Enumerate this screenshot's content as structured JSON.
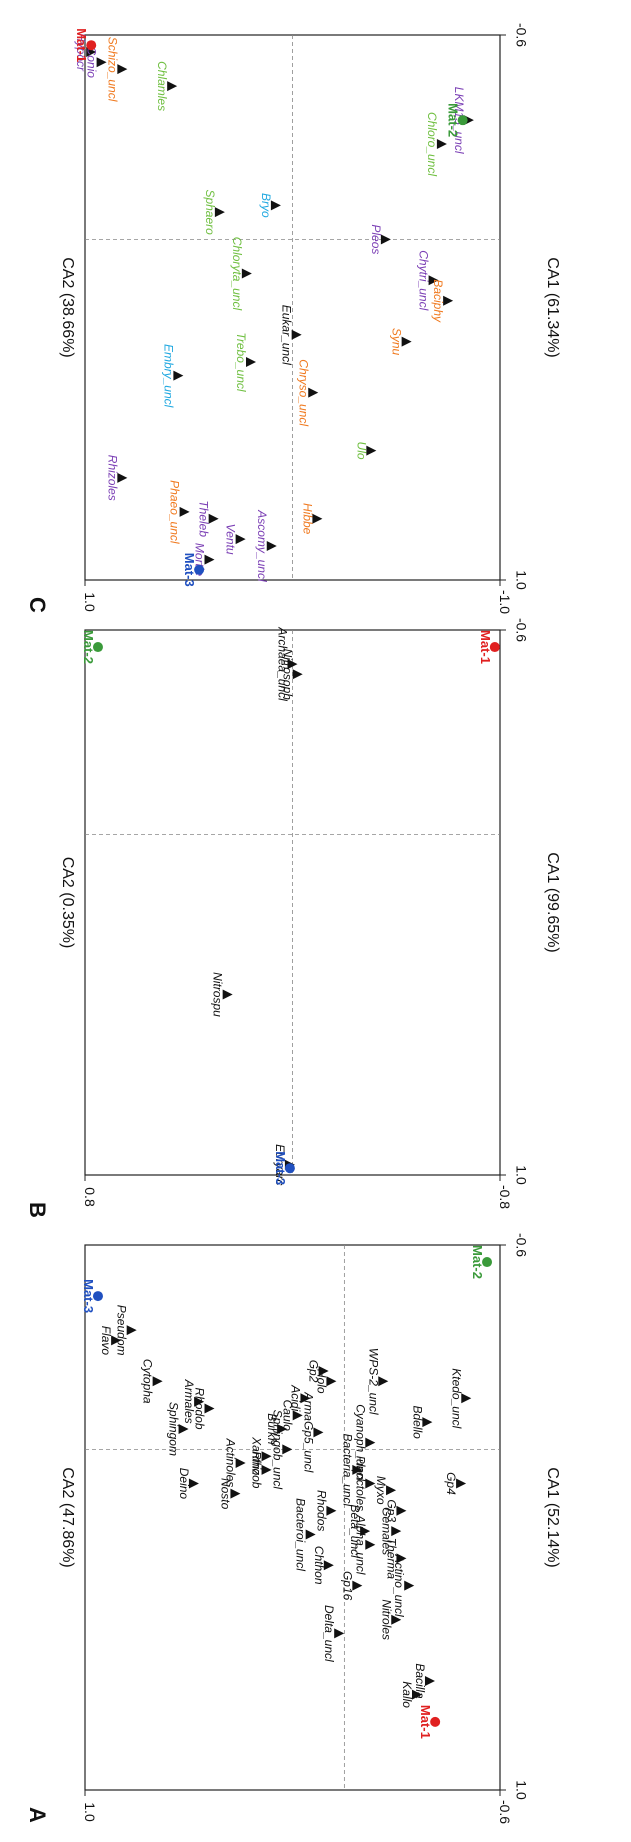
{
  "colors": {
    "red": "#e02020",
    "green": "#3a9a3a",
    "blue": "#2050c0",
    "purple": "#7b3fb5",
    "orange": "#f07a20",
    "lightgreen": "#6fbf40",
    "cyan": "#20a8e0",
    "black": "#111111"
  },
  "chart_data": [
    {
      "panel": "A",
      "type": "scatter",
      "xlabel": "CA1 (52.14%)",
      "ylabel": "CA2 (47.86%)",
      "xlim": [
        -0.6,
        1.0
      ],
      "ylim": [
        -0.6,
        1.0
      ],
      "xticks": [
        "-0.6",
        "1.0"
      ],
      "yticks": [
        "1.0",
        "-0.6"
      ],
      "series": [
        {
          "name": "taxa",
          "points": [
            {
              "label": "Flavo",
              "x": -0.32,
              "y": 0.88
            },
            {
              "label": "Pseudom",
              "x": -0.35,
              "y": 0.82
            },
            {
              "label": "Cytopha",
              "x": -0.2,
              "y": 0.72
            },
            {
              "label": "Sphingom",
              "x": -0.06,
              "y": 0.62
            },
            {
              "label": "Armales",
              "x": -0.14,
              "y": 0.56
            },
            {
              "label": "Rhodob",
              "x": -0.12,
              "y": 0.52
            },
            {
              "label": "Deino",
              "x": 0.1,
              "y": 0.58
            },
            {
              "label": "Nosto",
              "x": 0.13,
              "y": 0.42
            },
            {
              "label": "Actinoles",
              "x": 0.04,
              "y": 0.4
            },
            {
              "label": "Xantho",
              "x": 0.02,
              "y": 0.3
            },
            {
              "label": "Rhizob",
              "x": 0.06,
              "y": 0.3
            },
            {
              "label": "Burkh",
              "x": -0.06,
              "y": 0.24
            },
            {
              "label": "Caulo",
              "x": -0.1,
              "y": 0.18
            },
            {
              "label": "Acidi",
              "x": -0.15,
              "y": 0.15
            },
            {
              "label": "Sphingob_uncl",
              "x": 0.0,
              "y": 0.22
            },
            {
              "label": "Gp2",
              "x": -0.23,
              "y": 0.08
            },
            {
              "label": "ArmaGp5_uncl",
              "x": -0.05,
              "y": 0.1
            },
            {
              "label": "Holo",
              "x": -0.2,
              "y": 0.05
            },
            {
              "label": "Rhodos",
              "x": 0.18,
              "y": 0.05
            },
            {
              "label": "Bacteroi_uncl",
              "x": 0.25,
              "y": 0.13
            },
            {
              "label": "Chthon",
              "x": 0.34,
              "y": 0.06
            },
            {
              "label": "Bacteria_uncl",
              "x": 0.06,
              "y": -0.05
            },
            {
              "label": "Cyanoph_uncl",
              "x": -0.02,
              "y": -0.1
            },
            {
              "label": "Planctoles",
              "x": 0.1,
              "y": -0.1
            },
            {
              "label": "Beta_uncl",
              "x": 0.24,
              "y": -0.08
            },
            {
              "label": "Alpha_uncl",
              "x": 0.28,
              "y": -0.1
            },
            {
              "label": "Gp16",
              "x": 0.4,
              "y": -0.05
            },
            {
              "label": "Delta_uncl",
              "x": 0.54,
              "y": 0.02
            },
            {
              "label": "WPS-2_uncl",
              "x": -0.2,
              "y": -0.15
            },
            {
              "label": "Myxo",
              "x": 0.12,
              "y": -0.18
            },
            {
              "label": "Gp3",
              "x": 0.18,
              "y": -0.22
            },
            {
              "label": "Gemales",
              "x": 0.24,
              "y": -0.2
            },
            {
              "label": "Therma",
              "x": 0.32,
              "y": -0.22
            },
            {
              "label": "Actino_uncl",
              "x": 0.4,
              "y": -0.25
            },
            {
              "label": "Nitroles",
              "x": 0.5,
              "y": -0.2
            },
            {
              "label": "Bdello",
              "x": -0.08,
              "y": -0.32
            },
            {
              "label": "Gp4",
              "x": 0.1,
              "y": -0.45
            },
            {
              "label": "Ktedo_uncl",
              "x": -0.15,
              "y": -0.47
            },
            {
              "label": "Kallo",
              "x": 0.72,
              "y": -0.28
            },
            {
              "label": "Bacilla",
              "x": 0.68,
              "y": -0.33
            }
          ]
        },
        {
          "name": "samples",
          "points": [
            {
              "label": "Mat-3",
              "x": -0.45,
              "y": 0.95,
              "color": "blue"
            },
            {
              "label": "Mat-2",
              "x": -0.55,
              "y": -0.55,
              "color": "green"
            },
            {
              "label": "Mat-1",
              "x": 0.8,
              "y": -0.35,
              "color": "red"
            }
          ]
        }
      ]
    },
    {
      "panel": "B",
      "type": "scatter",
      "xlabel": "CA1 (99.65%)",
      "ylabel": "CA2 (0.35%)",
      "xlim": [
        -0.6,
        1.0
      ],
      "ylim": [
        -0.8,
        0.8
      ],
      "xticks": [
        "-0.6",
        "1.0"
      ],
      "yticks": [
        "0.8",
        "-0.8"
      ],
      "series": [
        {
          "name": "taxa",
          "points": [
            {
              "label": "Archaea_uncl",
              "x": -0.5,
              "y": 0.0
            },
            {
              "label": "Nitrosoph",
              "x": -0.47,
              "y": -0.02
            },
            {
              "label": "Nitrospu",
              "x": 0.47,
              "y": 0.25
            },
            {
              "label": "Euryarc",
              "x": 0.97,
              "y": 0.01
            }
          ]
        },
        {
          "name": "samples",
          "points": [
            {
              "label": "Mat-2",
              "x": -0.55,
              "y": 0.75,
              "color": "green"
            },
            {
              "label": "Mat-3",
              "x": 0.98,
              "y": 0.01,
              "color": "blue"
            },
            {
              "label": "Mat-1",
              "x": -0.55,
              "y": -0.78,
              "color": "red"
            }
          ]
        }
      ]
    },
    {
      "panel": "C",
      "type": "scatter",
      "xlabel": "CA1 (61.34%)",
      "ylabel": "CA2 (38.66%)",
      "xlim": [
        -0.6,
        1.0
      ],
      "ylim": [
        -1.0,
        1.0
      ],
      "xticks": [
        "-0.6",
        "1.0"
      ],
      "yticks": [
        "1.0",
        "-1.0"
      ],
      "series": [
        {
          "name": "taxa",
          "points": [
            {
              "label": "Hypocr",
              "x": -0.55,
              "y": 0.97,
              "color": "purple"
            },
            {
              "label": "Conio",
              "x": -0.52,
              "y": 0.92,
              "color": "purple"
            },
            {
              "label": "Schizo_uncl",
              "x": -0.5,
              "y": 0.82,
              "color": "orange"
            },
            {
              "label": "Chlamles",
              "x": -0.45,
              "y": 0.58,
              "color": "lightgreen"
            },
            {
              "label": "Sphaero",
              "x": -0.08,
              "y": 0.35,
              "color": "lightgreen"
            },
            {
              "label": "Chloryta_uncl",
              "x": 0.1,
              "y": 0.22,
              "color": "lightgreen"
            },
            {
              "label": "Bryo",
              "x": -0.1,
              "y": 0.08,
              "color": "cyan"
            },
            {
              "label": "Trebo_uncl",
              "x": 0.36,
              "y": 0.2,
              "color": "lightgreen"
            },
            {
              "label": "Eukar_uncl",
              "x": 0.28,
              "y": -0.02,
              "color": "black"
            },
            {
              "label": "Embry_uncl",
              "x": 0.4,
              "y": 0.55,
              "color": "cyan"
            },
            {
              "label": "Chryso_uncl",
              "x": 0.45,
              "y": -0.1,
              "color": "orange"
            },
            {
              "label": "Ulo",
              "x": 0.62,
              "y": -0.38,
              "color": "lightgreen"
            },
            {
              "label": "Rhizoles",
              "x": 0.7,
              "y": 0.82,
              "color": "purple"
            },
            {
              "label": "Phaeo_uncl",
              "x": 0.8,
              "y": 0.52,
              "color": "orange"
            },
            {
              "label": "Theleb",
              "x": 0.82,
              "y": 0.38,
              "color": "purple"
            },
            {
              "label": "Mortie",
              "x": 0.94,
              "y": 0.4,
              "color": "purple"
            },
            {
              "label": "Hibbe",
              "x": 0.82,
              "y": -0.12,
              "color": "orange"
            },
            {
              "label": "Ventu",
              "x": 0.88,
              "y": 0.25,
              "color": "purple"
            },
            {
              "label": "Ascomy_uncl",
              "x": 0.9,
              "y": 0.1,
              "color": "purple"
            },
            {
              "label": "Pleos",
              "x": 0.0,
              "y": -0.45,
              "color": "purple"
            },
            {
              "label": "Synu",
              "x": 0.3,
              "y": -0.55,
              "color": "orange"
            },
            {
              "label": "Chytri_uncl",
              "x": 0.12,
              "y": -0.68,
              "color": "purple"
            },
            {
              "label": "Baciphy",
              "x": 0.18,
              "y": -0.75,
              "color": "orange"
            },
            {
              "label": "Chloro_uncl",
              "x": -0.28,
              "y": -0.72,
              "color": "lightgreen"
            },
            {
              "label": "LKM15_uncl",
              "x": -0.35,
              "y": -0.85,
              "color": "purple"
            }
          ]
        },
        {
          "name": "samples",
          "points": [
            {
              "label": "Mat-1",
              "x": -0.57,
              "y": 0.97,
              "color": "red"
            },
            {
              "label": "Mat-3",
              "x": 0.97,
              "y": 0.45,
              "color": "blue"
            },
            {
              "label": "Mat-2",
              "x": -0.35,
              "y": -0.82,
              "color": "green"
            }
          ]
        }
      ]
    }
  ]
}
